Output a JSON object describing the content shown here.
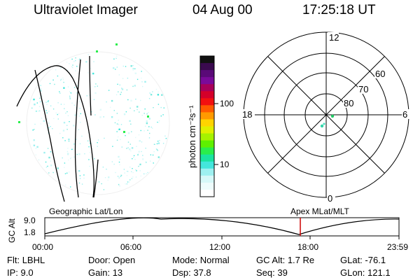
{
  "header": {
    "title": "Ultraviolet Imager",
    "date": "04 Aug 00",
    "time": "17:25:18 UT"
  },
  "colorbar": {
    "label": "photon cm⁻²s⁻¹",
    "ticks": [
      "100",
      "10"
    ],
    "colors": [
      "#111111",
      "#3a0a4e",
      "#5a0a78",
      "#7a0a9a",
      "#a8005a",
      "#d4002a",
      "#f21010",
      "#ff5a00",
      "#ff9a00",
      "#ffd400",
      "#e0f000",
      "#a6f200",
      "#5ef000",
      "#2aee4c",
      "#1ae4a0",
      "#44e6dc",
      "#9ef0f0",
      "#d6f8f8",
      "#eefcfc",
      "#ffffff"
    ]
  },
  "polar": {
    "mlt_labels": {
      "top": "12",
      "left": "18",
      "right": "6",
      "bottom": "0"
    },
    "lat_labels": [
      "60",
      "70",
      "80"
    ]
  },
  "timeline": {
    "left_label": "Geographic Lat/Lon",
    "right_label": "Apex MLat/MLT",
    "axis_title": "GC Alt",
    "y_ticks": [
      "9.0",
      "1.8"
    ],
    "x_ticks": [
      "00:00",
      "06:00",
      "12:00",
      "18:00",
      "23:59"
    ],
    "cursor_color": "#cc0000"
  },
  "status": {
    "row1": [
      {
        "key": "Flt:",
        "value": "LBHL"
      },
      {
        "key": "Door:",
        "value": "Open"
      },
      {
        "key": "Mode:",
        "value": "Normal"
      },
      {
        "key": "GC Alt:",
        "value": "1.7 Re"
      },
      {
        "key": "GLat:",
        "value": "-76.1"
      }
    ],
    "row2": [
      {
        "key": "IP:",
        "value": "9.0"
      },
      {
        "key": "Gain:",
        "value": "13"
      },
      {
        "key": "Dsp:",
        "value": "37.8"
      },
      {
        "key": "Seq:",
        "value": "39"
      },
      {
        "key": "GLon:",
        "value": "121.1"
      }
    ]
  }
}
